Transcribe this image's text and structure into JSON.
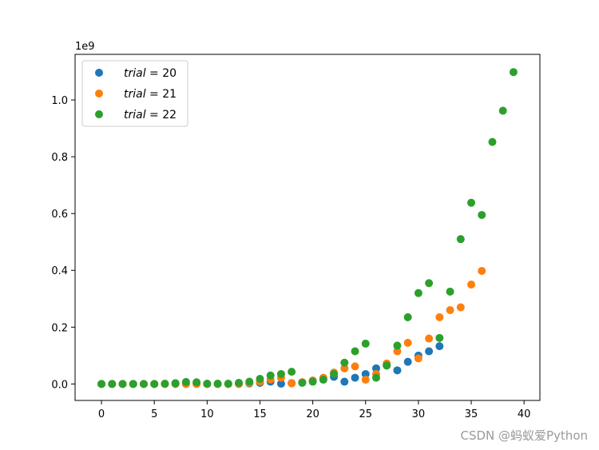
{
  "chart_data": {
    "type": "scatter",
    "title": "",
    "xlabel": "",
    "ylabel": "",
    "y_offset_text": "1e9",
    "xlim": [
      -2.5,
      41.5
    ],
    "ylim": [
      -0.058,
      1.1605
    ],
    "x_ticks": [
      0,
      5,
      10,
      15,
      20,
      25,
      30,
      35,
      40
    ],
    "x_tick_labels": [
      "0",
      "5",
      "10",
      "15",
      "20",
      "25",
      "30",
      "35",
      "40"
    ],
    "y_ticks": [
      0.0,
      0.2,
      0.4,
      0.6,
      0.8,
      1.0
    ],
    "y_tick_labels": [
      "0.0",
      "0.2",
      "0.4",
      "0.6",
      "0.8",
      "1.0"
    ],
    "grid": false,
    "legend_position": "top-left",
    "series": [
      {
        "name_prefix": "trial",
        "name_value": "20",
        "color": "#1f77b4",
        "x": [
          0,
          1,
          2,
          3,
          4,
          5,
          6,
          7,
          8,
          9,
          10,
          11,
          12,
          13,
          14,
          15,
          16,
          17,
          18,
          19,
          20,
          21,
          22,
          23,
          24,
          25,
          26,
          27,
          28,
          29,
          30,
          31,
          32
        ],
        "y": [
          0,
          0,
          0,
          0,
          0,
          0,
          0,
          0,
          0,
          0,
          0,
          0,
          0,
          0,
          0.002,
          0.004,
          0.008,
          0.001,
          0.003,
          0.006,
          0.012,
          0.018,
          0.025,
          0.008,
          0.022,
          0.035,
          0.055,
          0.065,
          0.048,
          0.078,
          0.1,
          0.115,
          0.133
        ]
      },
      {
        "name_prefix": "trial",
        "name_value": "21",
        "color": "#ff7f0e",
        "x": [
          0,
          1,
          2,
          3,
          4,
          5,
          6,
          7,
          8,
          9,
          10,
          11,
          12,
          13,
          14,
          15,
          16,
          17,
          18,
          19,
          20,
          21,
          22,
          23,
          24,
          25,
          26,
          27,
          28,
          29,
          30,
          31,
          32,
          33,
          34,
          35,
          36
        ],
        "y": [
          0,
          0,
          0,
          0,
          0,
          0,
          0,
          0.001,
          0,
          0,
          0,
          0,
          0,
          0,
          0.004,
          0.008,
          0.016,
          0.022,
          0.002,
          0.006,
          0.012,
          0.022,
          0.04,
          0.055,
          0.062,
          0.015,
          0.035,
          0.072,
          0.115,
          0.145,
          0.09,
          0.16,
          0.235,
          0.26,
          0.27,
          0.35,
          0.398
        ]
      },
      {
        "name_prefix": "trial",
        "name_value": "22",
        "color": "#2ca02c",
        "x": [
          0,
          1,
          2,
          3,
          4,
          5,
          6,
          7,
          8,
          9,
          10,
          11,
          12,
          13,
          14,
          15,
          16,
          17,
          18,
          19,
          20,
          21,
          22,
          23,
          24,
          25,
          26,
          27,
          28,
          29,
          30,
          31,
          32,
          33,
          34,
          35,
          36,
          37,
          38,
          39
        ],
        "y": [
          0,
          0,
          0,
          0,
          0,
          0,
          0.001,
          0.003,
          0.007,
          0.006,
          0.001,
          0.001,
          0.001,
          0.004,
          0.008,
          0.018,
          0.03,
          0.035,
          0.043,
          0.004,
          0.008,
          0.015,
          0.035,
          0.075,
          0.115,
          0.142,
          0.022,
          0.065,
          0.135,
          0.235,
          0.32,
          0.355,
          0.162,
          0.325,
          0.51,
          0.638,
          0.595,
          0.852,
          0.962,
          1.098
        ]
      }
    ]
  },
  "watermark": "CSDN @蚂蚁爱Python"
}
